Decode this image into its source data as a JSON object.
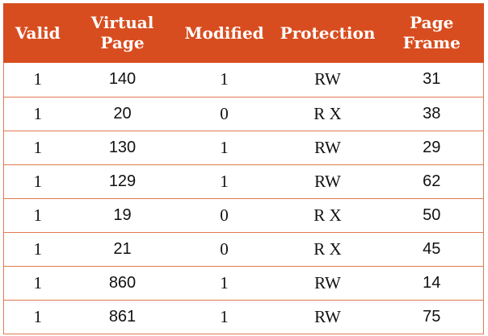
{
  "table": {
    "header_color": "#d84d1f",
    "border_color": "#e07a4f",
    "columns": [
      {
        "line1": "Valid",
        "line2": ""
      },
      {
        "line1": "Virtual",
        "line2": "Page"
      },
      {
        "line1": "Modified",
        "line2": ""
      },
      {
        "line1": "Protection",
        "line2": ""
      },
      {
        "line1": "Page",
        "line2": "Frame"
      }
    ],
    "rows": [
      [
        "1",
        "140",
        "1",
        "RW",
        "31"
      ],
      [
        "1",
        "20",
        "0",
        "R X",
        "38"
      ],
      [
        "1",
        "130",
        "1",
        "RW",
        "29"
      ],
      [
        "1",
        "129",
        "1",
        "RW",
        "62"
      ],
      [
        "1",
        "19",
        "0",
        "R X",
        "50"
      ],
      [
        "1",
        "21",
        "0",
        "R X",
        "45"
      ],
      [
        "1",
        "860",
        "1",
        "RW",
        "14"
      ],
      [
        "1",
        "861",
        "1",
        "RW",
        "75"
      ]
    ]
  }
}
